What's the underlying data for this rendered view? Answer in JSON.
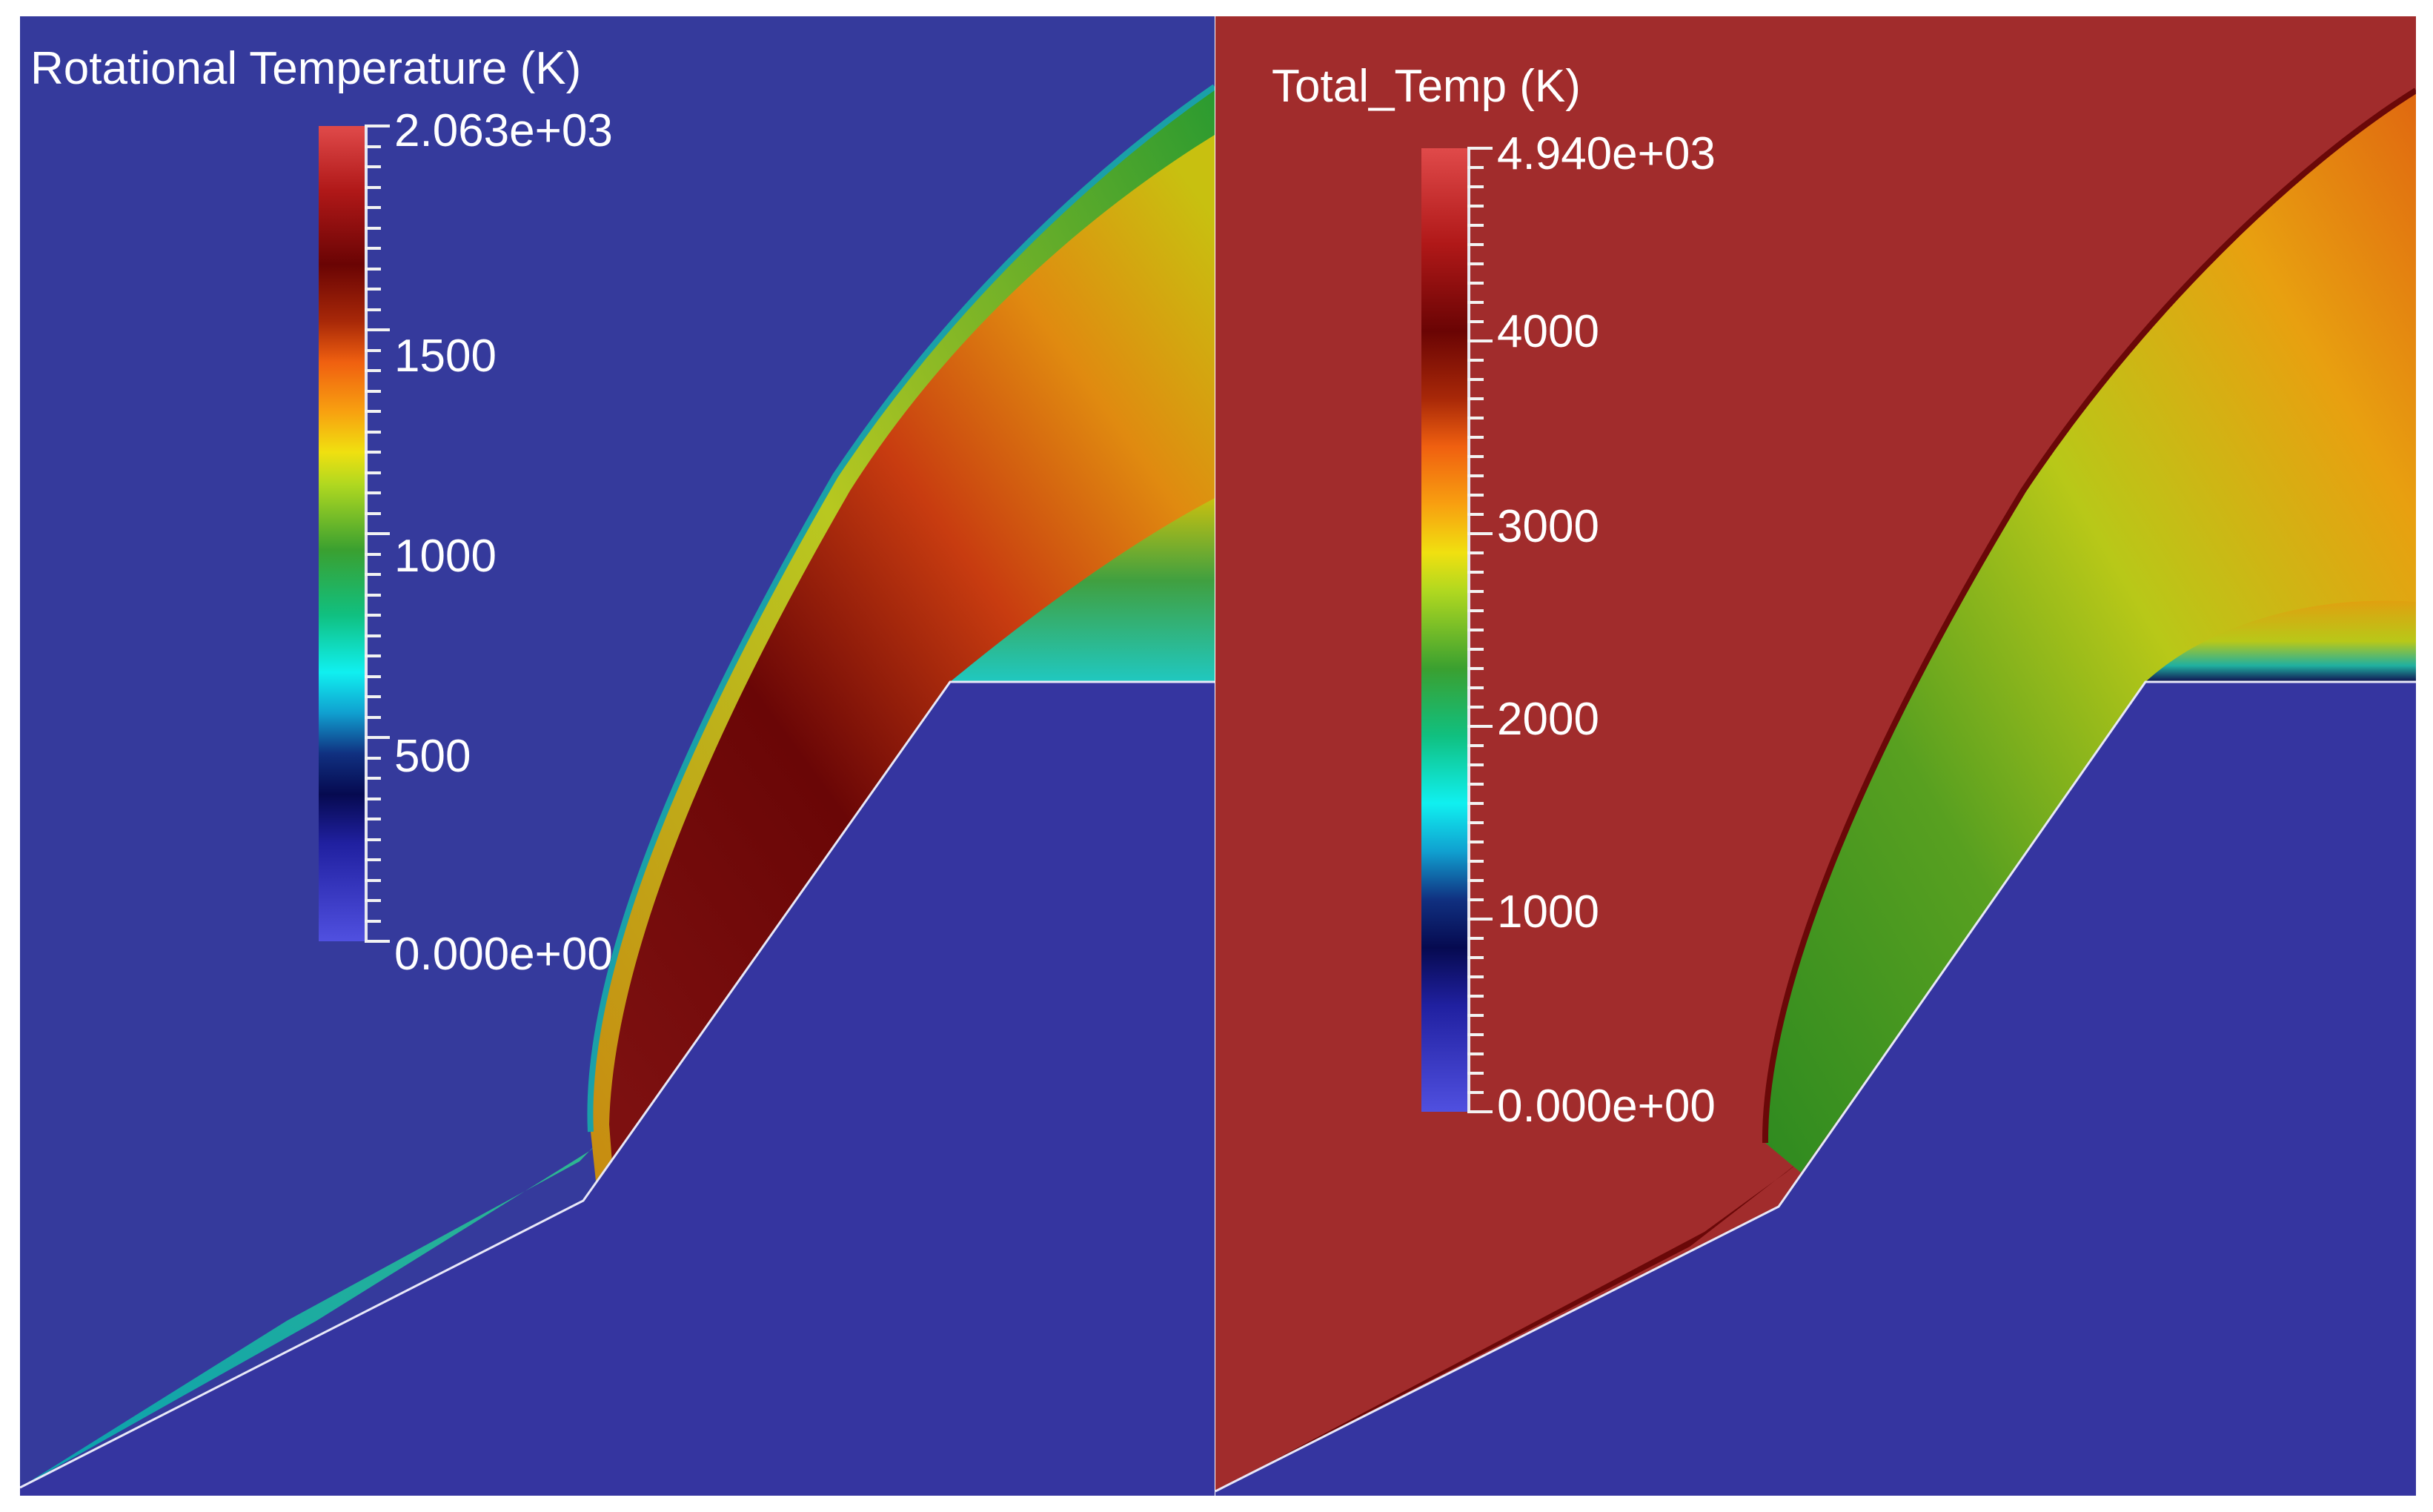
{
  "panels": [
    {
      "title": "Rotational Temperature (K)",
      "colorbar_labels": [
        "2.063e+03",
        "1500",
        "1000",
        "500",
        "0.000e+00"
      ],
      "colorbar_values": [
        2063,
        1500,
        1000,
        500,
        0
      ],
      "value_range": [
        0,
        2063
      ],
      "background_color": "#353a9c",
      "body_color": "#3535a0"
    },
    {
      "title": "Total_Temp (K)",
      "colorbar_labels": [
        "4.940e+03",
        "4000",
        "3000",
        "2000",
        "1000",
        "0.000e+00"
      ],
      "colorbar_values": [
        4940,
        4000,
        3000,
        2000,
        1000,
        0
      ],
      "value_range": [
        0,
        4940
      ],
      "background_color": "#a12c2c",
      "body_color": "#3535a0"
    }
  ]
}
